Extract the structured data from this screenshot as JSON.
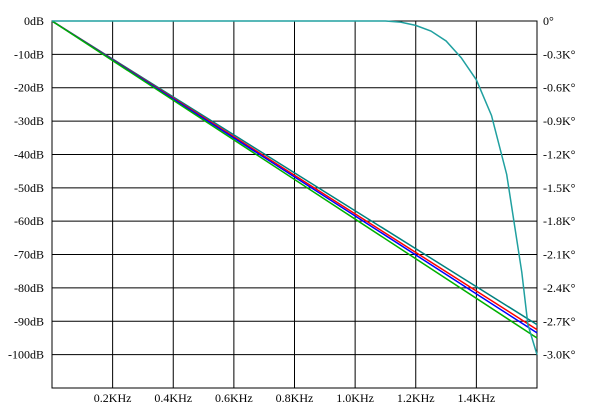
{
  "chart_data": {
    "type": "line",
    "title": "",
    "x_axis": {
      "range": [
        0,
        1.6
      ],
      "ticks": [
        0.2,
        0.4,
        0.6,
        0.8,
        1.0,
        1.2,
        1.4
      ],
      "tick_labels": [
        "0.2KHz",
        "0.4KHz",
        "0.6KHz",
        "0.8KHz",
        "1.0KHz",
        "1.2KHz",
        "1.4KHz"
      ],
      "unit": "KHz"
    },
    "y_left": {
      "range": [
        -110,
        0
      ],
      "ticks": [
        0,
        -10,
        -20,
        -30,
        -40,
        -50,
        -60,
        -70,
        -80,
        -90,
        -100
      ],
      "tick_labels": [
        "0dB",
        "-10dB",
        "-20dB",
        "-30dB",
        "-40dB",
        "-50dB",
        "-60dB",
        "-70dB",
        "-80dB",
        "-90dB",
        "-100dB"
      ],
      "unit": "dB"
    },
    "y_right": {
      "range": [
        -3.3,
        0
      ],
      "ticks": [
        0,
        -0.3,
        -0.6,
        -0.9,
        -1.2,
        -1.5,
        -1.8,
        -2.1,
        -2.4,
        -2.7,
        -3.0
      ],
      "tick_labels": [
        "0°",
        "-0.3K°",
        "-0.6K°",
        "-0.9K°",
        "-1.2K°",
        "-1.5K°",
        "-1.8K°",
        "-2.1K°",
        "-2.4K°",
        "-2.7K°",
        "-3.0K°"
      ],
      "unit": "K°"
    },
    "grid": true,
    "series": [
      {
        "axis": "left",
        "color": "#008080",
        "x": [
          0,
          1.6
        ],
        "y": [
          0,
          -91
        ]
      },
      {
        "axis": "left",
        "color": "#ff0000",
        "x": [
          0,
          1.6
        ],
        "y": [
          0,
          -92.5
        ]
      },
      {
        "axis": "left",
        "color": "#0000ff",
        "x": [
          0,
          1.6
        ],
        "y": [
          0,
          -93.5
        ]
      },
      {
        "axis": "left",
        "color": "#00b000",
        "x": [
          0,
          1.6
        ],
        "y": [
          0,
          -95
        ]
      },
      {
        "axis": "right",
        "color": "#20a0a0",
        "x": [
          0,
          1.1,
          1.15,
          1.2,
          1.25,
          1.3,
          1.35,
          1.4,
          1.45,
          1.5,
          1.55,
          1.57,
          1.6
        ],
        "y": [
          0,
          0,
          -0.01,
          -0.04,
          -0.09,
          -0.18,
          -0.33,
          -0.53,
          -0.85,
          -1.38,
          -2.26,
          -2.73,
          -3.0
        ]
      }
    ]
  }
}
